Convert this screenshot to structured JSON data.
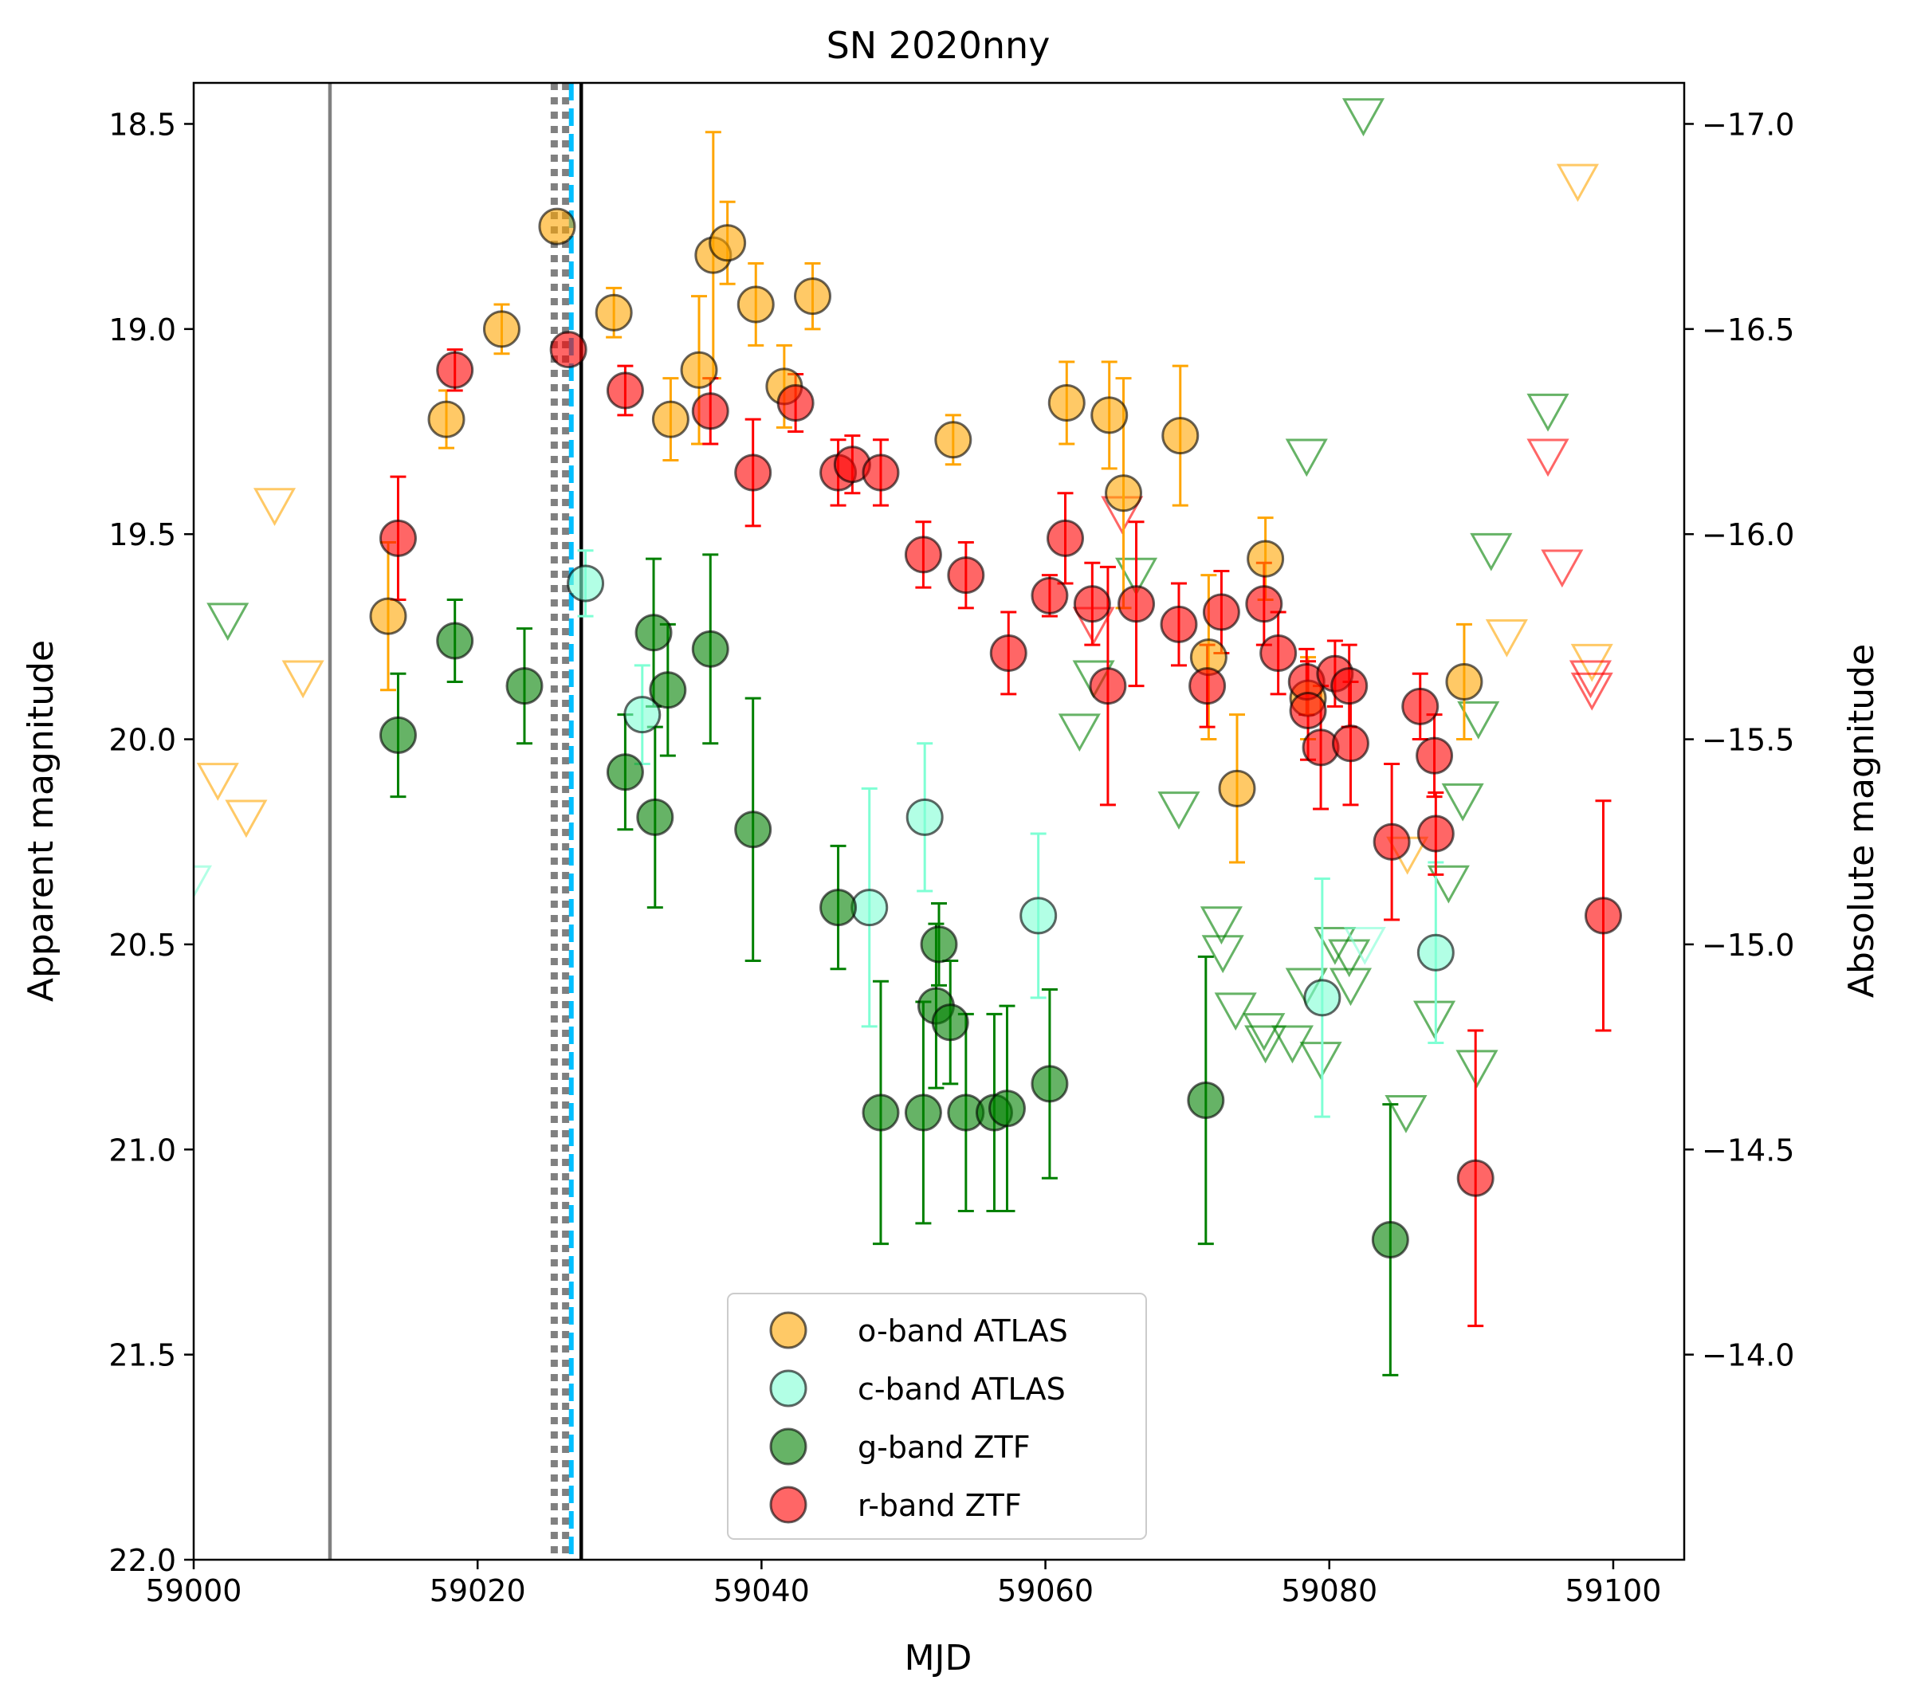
{
  "chart_data": {
    "type": "scatter",
    "title": "SN 2020nny",
    "xlabel": "MJD",
    "ylabel": "Apparent magnitude",
    "y2label": "Absolute magnitude",
    "xlim": [
      59000,
      59105
    ],
    "ylim": [
      22.0,
      18.4
    ],
    "y_inverted": true,
    "xticks": [
      "59000",
      "59020",
      "59040",
      "59060",
      "59080",
      "59100"
    ],
    "yticks": [
      "18.5",
      "19.0",
      "19.5",
      "20.0",
      "20.5",
      "21.0",
      "21.5",
      "22.0"
    ],
    "y2ticks": [
      "−17.0",
      "−16.5",
      "−16.0",
      "−15.5",
      "−15.0",
      "−14.5",
      "−14.0"
    ],
    "y2_tick_values": [
      -17.0,
      -16.5,
      -16.0,
      -15.5,
      -15.0,
      -14.5,
      -14.0
    ],
    "distance_modulus": 35.5,
    "legend_position": "lower center",
    "colors": {
      "o": "#ffa500",
      "c": "#7fffd4",
      "g": "#008000",
      "r": "#ff0000"
    },
    "vertical_lines": [
      {
        "x": 59009.6,
        "style": "solid",
        "color": "#808080"
      },
      {
        "x": 59025.4,
        "style": "dotted",
        "color": "#808080"
      },
      {
        "x": 59026.2,
        "style": "dotted",
        "color": "#808080"
      },
      {
        "x": 59026.6,
        "style": "dashed",
        "color": "#00bfff"
      },
      {
        "x": 59027.3,
        "style": "solid",
        "color": "#000000"
      }
    ],
    "series": [
      {
        "name": "o-band ATLAS",
        "band": "o",
        "points": [
          {
            "x": 59013.7,
            "y": 19.7,
            "err": 0.18
          },
          {
            "x": 59017.8,
            "y": 19.22,
            "err": 0.07
          },
          {
            "x": 59021.7,
            "y": 19.0,
            "err": 0.06
          },
          {
            "x": 59025.6,
            "y": 18.75,
            "err": 0.0
          },
          {
            "x": 59029.6,
            "y": 18.96,
            "err": 0.06
          },
          {
            "x": 59033.6,
            "y": 19.22,
            "err": 0.1
          },
          {
            "x": 59035.6,
            "y": 19.1,
            "err": 0.18
          },
          {
            "x": 59036.6,
            "y": 18.82,
            "err": 0.3
          },
          {
            "x": 59037.6,
            "y": 18.79,
            "err": 0.1
          },
          {
            "x": 59039.6,
            "y": 18.94,
            "err": 0.1
          },
          {
            "x": 59041.6,
            "y": 19.14,
            "err": 0.1
          },
          {
            "x": 59043.6,
            "y": 18.92,
            "err": 0.08
          },
          {
            "x": 59053.5,
            "y": 19.27,
            "err": 0.06
          },
          {
            "x": 59061.5,
            "y": 19.18,
            "err": 0.1
          },
          {
            "x": 59064.5,
            "y": 19.21,
            "err": 0.13
          },
          {
            "x": 59065.5,
            "y": 19.4,
            "err": 0.28
          },
          {
            "x": 59069.5,
            "y": 19.26,
            "err": 0.17
          },
          {
            "x": 59071.5,
            "y": 19.8,
            "err": 0.2
          },
          {
            "x": 59073.5,
            "y": 20.12,
            "err": 0.18
          },
          {
            "x": 59075.5,
            "y": 19.56,
            "err": 0.1
          },
          {
            "x": 59078.5,
            "y": 19.9,
            "err": 0.1
          },
          {
            "x": 59089.5,
            "y": 19.86,
            "err": 0.14
          }
        ]
      },
      {
        "name": "c-band ATLAS",
        "band": "c",
        "points": [
          {
            "x": 59027.6,
            "y": 19.62,
            "err": 0.08
          },
          {
            "x": 59031.6,
            "y": 19.94,
            "err": 0.12
          },
          {
            "x": 59047.6,
            "y": 20.41,
            "err": 0.29
          },
          {
            "x": 59051.5,
            "y": 20.19,
            "err": 0.18
          },
          {
            "x": 59059.5,
            "y": 20.43,
            "err": 0.2
          },
          {
            "x": 59079.5,
            "y": 20.63,
            "err": 0.29
          },
          {
            "x": 59087.5,
            "y": 20.52,
            "err": 0.22
          }
        ]
      },
      {
        "name": "g-band ZTF",
        "band": "g",
        "points": [
          {
            "x": 59014.4,
            "y": 19.99,
            "err": 0.15
          },
          {
            "x": 59018.4,
            "y": 19.76,
            "err": 0.1
          },
          {
            "x": 59023.3,
            "y": 19.87,
            "err": 0.14
          },
          {
            "x": 59030.4,
            "y": 20.08,
            "err": 0.14
          },
          {
            "x": 59032.4,
            "y": 19.74,
            "err": 0.18
          },
          {
            "x": 59032.5,
            "y": 20.19,
            "err": 0.22
          },
          {
            "x": 59033.4,
            "y": 19.88,
            "err": 0.16
          },
          {
            "x": 59036.4,
            "y": 19.78,
            "err": 0.23
          },
          {
            "x": 59039.4,
            "y": 20.22,
            "err": 0.32
          },
          {
            "x": 59045.4,
            "y": 20.41,
            "err": 0.15
          },
          {
            "x": 59048.4,
            "y": 20.91,
            "err": 0.32
          },
          {
            "x": 59051.4,
            "y": 20.91,
            "err": 0.27
          },
          {
            "x": 59052.3,
            "y": 20.65,
            "err": 0.2
          },
          {
            "x": 59052.5,
            "y": 20.5,
            "err": 0.1
          },
          {
            "x": 59053.3,
            "y": 20.69,
            "err": 0.15
          },
          {
            "x": 59054.4,
            "y": 20.91,
            "err": 0.24
          },
          {
            "x": 59056.4,
            "y": 20.91,
            "err": 0.24
          },
          {
            "x": 59057.3,
            "y": 20.9,
            "err": 0.25
          },
          {
            "x": 59060.3,
            "y": 20.84,
            "err": 0.23
          },
          {
            "x": 59071.3,
            "y": 20.88,
            "err": 0.35
          },
          {
            "x": 59084.3,
            "y": 21.22,
            "err": 0.33
          }
        ]
      },
      {
        "name": "r-band ZTF",
        "band": "r",
        "points": [
          {
            "x": 59014.4,
            "y": 19.51,
            "err": 0.15
          },
          {
            "x": 59018.4,
            "y": 19.1,
            "err": 0.05
          },
          {
            "x": 59026.4,
            "y": 19.05,
            "err": 0.0
          },
          {
            "x": 59030.4,
            "y": 19.15,
            "err": 0.06
          },
          {
            "x": 59036.4,
            "y": 19.2,
            "err": 0.08
          },
          {
            "x": 59039.4,
            "y": 19.35,
            "err": 0.13
          },
          {
            "x": 59042.4,
            "y": 19.18,
            "err": 0.07
          },
          {
            "x": 59045.4,
            "y": 19.35,
            "err": 0.08
          },
          {
            "x": 59046.4,
            "y": 19.33,
            "err": 0.07
          },
          {
            "x": 59048.4,
            "y": 19.35,
            "err": 0.08
          },
          {
            "x": 59051.4,
            "y": 19.55,
            "err": 0.08
          },
          {
            "x": 59054.4,
            "y": 19.6,
            "err": 0.08
          },
          {
            "x": 59057.4,
            "y": 19.79,
            "err": 0.1
          },
          {
            "x": 59060.3,
            "y": 19.65,
            "err": 0.05
          },
          {
            "x": 59061.4,
            "y": 19.51,
            "err": 0.11
          },
          {
            "x": 59063.3,
            "y": 19.67,
            "err": 0.1
          },
          {
            "x": 59064.4,
            "y": 19.87,
            "err": 0.29
          },
          {
            "x": 59066.4,
            "y": 19.67,
            "err": 0.2
          },
          {
            "x": 59069.4,
            "y": 19.72,
            "err": 0.1
          },
          {
            "x": 59071.4,
            "y": 19.87,
            "err": 0.1
          },
          {
            "x": 59072.4,
            "y": 19.69,
            "err": 0.1
          },
          {
            "x": 59075.4,
            "y": 19.67,
            "err": 0.1
          },
          {
            "x": 59076.4,
            "y": 19.79,
            "err": 0.1
          },
          {
            "x": 59078.4,
            "y": 19.86,
            "err": 0.08
          },
          {
            "x": 59078.5,
            "y": 19.93,
            "err": 0.12
          },
          {
            "x": 59079.4,
            "y": 20.02,
            "err": 0.15
          },
          {
            "x": 59080.4,
            "y": 19.84,
            "err": 0.08
          },
          {
            "x": 59081.4,
            "y": 19.87,
            "err": 0.1
          },
          {
            "x": 59081.5,
            "y": 20.01,
            "err": 0.15
          },
          {
            "x": 59084.4,
            "y": 20.25,
            "err": 0.19
          },
          {
            "x": 59086.4,
            "y": 19.92,
            "err": 0.08
          },
          {
            "x": 59087.4,
            "y": 20.04,
            "err": 0.1
          },
          {
            "x": 59087.5,
            "y": 20.23,
            "err": 0.1
          },
          {
            "x": 59090.3,
            "y": 21.07,
            "err": 0.36
          },
          {
            "x": 59099.3,
            "y": 20.43,
            "err": 0.28
          }
        ]
      }
    ],
    "upper_limits": [
      {
        "band": "c",
        "x": 58999.8,
        "y": 20.35
      },
      {
        "band": "o",
        "x": 59001.7,
        "y": 20.1
      },
      {
        "band": "o",
        "x": 59003.7,
        "y": 20.19
      },
      {
        "band": "g",
        "x": 59002.4,
        "y": 19.71
      },
      {
        "band": "o",
        "x": 59005.7,
        "y": 19.43
      },
      {
        "band": "o",
        "x": 59007.7,
        "y": 19.85
      },
      {
        "band": "g",
        "x": 59062.4,
        "y": 19.98
      },
      {
        "band": "g",
        "x": 59063.4,
        "y": 19.85
      },
      {
        "band": "r",
        "x": 59063.4,
        "y": 19.72
      },
      {
        "band": "r",
        "x": 59065.4,
        "y": 19.45
      },
      {
        "band": "g",
        "x": 59066.4,
        "y": 19.6
      },
      {
        "band": "g",
        "x": 59069.4,
        "y": 20.17
      },
      {
        "band": "g",
        "x": 59072.4,
        "y": 20.45
      },
      {
        "band": "g",
        "x": 59072.5,
        "y": 20.52
      },
      {
        "band": "g",
        "x": 59073.4,
        "y": 20.66
      },
      {
        "band": "g",
        "x": 59075.4,
        "y": 20.71
      },
      {
        "band": "g",
        "x": 59075.5,
        "y": 20.74
      },
      {
        "band": "g",
        "x": 59077.4,
        "y": 20.74
      },
      {
        "band": "g",
        "x": 59078.4,
        "y": 20.6
      },
      {
        "band": "g",
        "x": 59078.4,
        "y": 19.31
      },
      {
        "band": "g",
        "x": 59079.4,
        "y": 20.78
      },
      {
        "band": "g",
        "x": 59080.4,
        "y": 20.5
      },
      {
        "band": "g",
        "x": 59081.4,
        "y": 20.53
      },
      {
        "band": "g",
        "x": 59081.5,
        "y": 20.6
      },
      {
        "band": "c",
        "x": 59082.5,
        "y": 20.5
      },
      {
        "band": "g",
        "x": 59082.4,
        "y": 18.48
      },
      {
        "band": "o",
        "x": 59085.5,
        "y": 20.28
      },
      {
        "band": "g",
        "x": 59085.4,
        "y": 20.91
      },
      {
        "band": "g",
        "x": 59087.4,
        "y": 20.68
      },
      {
        "band": "g",
        "x": 59088.4,
        "y": 20.35
      },
      {
        "band": "g",
        "x": 59089.4,
        "y": 20.15
      },
      {
        "band": "g",
        "x": 59090.4,
        "y": 20.8
      },
      {
        "band": "g",
        "x": 59090.5,
        "y": 19.95
      },
      {
        "band": "g",
        "x": 59091.4,
        "y": 19.54
      },
      {
        "band": "o",
        "x": 59092.5,
        "y": 19.75
      },
      {
        "band": "g",
        "x": 59095.4,
        "y": 19.2
      },
      {
        "band": "r",
        "x": 59095.4,
        "y": 19.31
      },
      {
        "band": "r",
        "x": 59096.4,
        "y": 19.58
      },
      {
        "band": "o",
        "x": 59097.5,
        "y": 18.64
      },
      {
        "band": "o",
        "x": 59098.5,
        "y": 19.81
      },
      {
        "band": "r",
        "x": 59098.4,
        "y": 19.85
      },
      {
        "band": "r",
        "x": 59098.5,
        "y": 19.88
      }
    ]
  }
}
